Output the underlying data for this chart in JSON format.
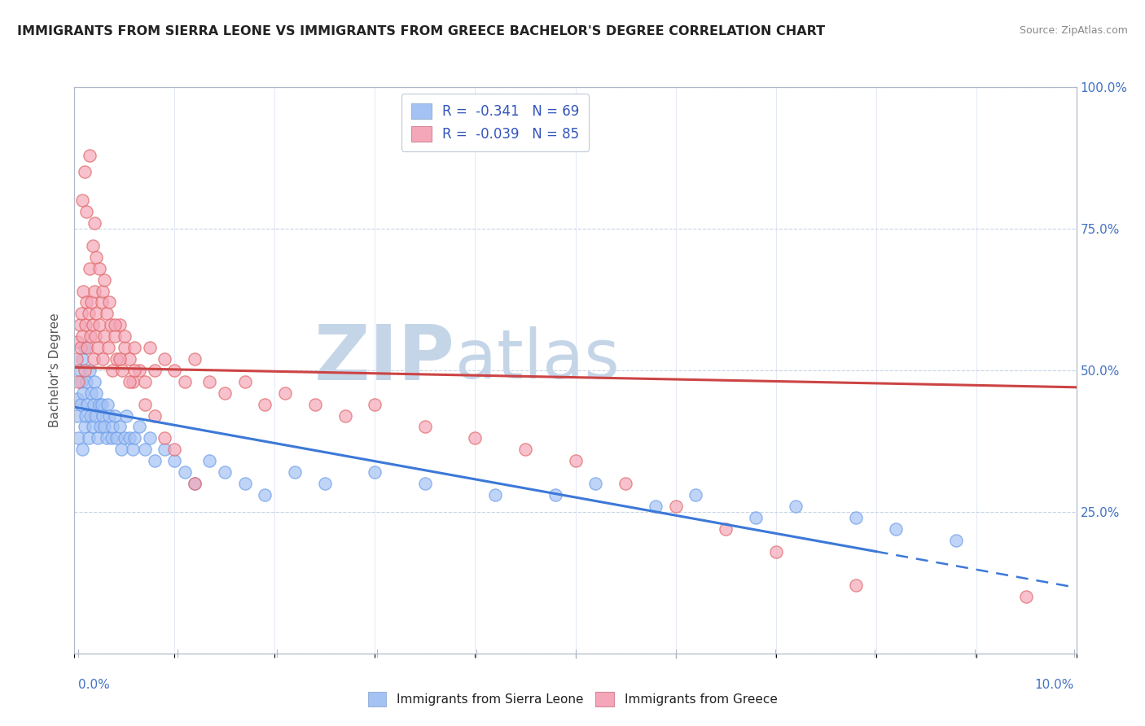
{
  "title": "IMMIGRANTS FROM SIERRA LEONE VS IMMIGRANTS FROM GREECE BACHELOR'S DEGREE CORRELATION CHART",
  "source": "Source: ZipAtlas.com",
  "ylabel": "Bachelor's Degree",
  "x_min": 0.0,
  "x_max": 10.0,
  "y_min": 0.0,
  "y_max": 100.0,
  "blue_color": "#a4c2f4",
  "pink_color": "#f4a7b9",
  "blue_edge": "#6d9eeb",
  "pink_edge": "#e06666",
  "trend_blue": "#3c78d8",
  "trend_pink": "#cc4444",
  "watermark_zip": "ZIP",
  "watermark_atlas": "atlas",
  "watermark_color_zip": "#c8d8ee",
  "watermark_color_atlas": "#c8d8ee",
  "legend1_label": "R =  -0.341   N = 69",
  "legend2_label": "R =  -0.039   N = 85",
  "sl_x": [
    0.02,
    0.03,
    0.04,
    0.05,
    0.06,
    0.07,
    0.08,
    0.08,
    0.09,
    0.1,
    0.1,
    0.11,
    0.12,
    0.13,
    0.14,
    0.15,
    0.16,
    0.17,
    0.18,
    0.19,
    0.2,
    0.21,
    0.22,
    0.23,
    0.25,
    0.26,
    0.27,
    0.28,
    0.3,
    0.32,
    0.33,
    0.35,
    0.37,
    0.38,
    0.4,
    0.42,
    0.45,
    0.47,
    0.5,
    0.52,
    0.55,
    0.58,
    0.6,
    0.65,
    0.7,
    0.75,
    0.8,
    0.9,
    1.0,
    1.1,
    1.2,
    1.35,
    1.5,
    1.7,
    1.9,
    2.2,
    2.5,
    3.0,
    3.5,
    4.2,
    4.8,
    5.2,
    5.8,
    6.2,
    6.8,
    7.2,
    7.8,
    8.2,
    8.8
  ],
  "sl_y": [
    42,
    45,
    38,
    50,
    44,
    48,
    52,
    36,
    46,
    40,
    54,
    42,
    48,
    44,
    38,
    50,
    42,
    46,
    40,
    44,
    48,
    42,
    46,
    38,
    44,
    40,
    44,
    42,
    40,
    38,
    44,
    42,
    38,
    40,
    42,
    38,
    40,
    36,
    38,
    42,
    38,
    36,
    38,
    40,
    36,
    38,
    34,
    36,
    34,
    32,
    30,
    34,
    32,
    30,
    28,
    32,
    30,
    32,
    30,
    28,
    28,
    30,
    26,
    28,
    24,
    26,
    24,
    22,
    20
  ],
  "gr_x": [
    0.02,
    0.03,
    0.04,
    0.05,
    0.06,
    0.07,
    0.08,
    0.09,
    0.1,
    0.11,
    0.12,
    0.13,
    0.14,
    0.15,
    0.16,
    0.17,
    0.18,
    0.19,
    0.2,
    0.21,
    0.22,
    0.23,
    0.25,
    0.27,
    0.28,
    0.3,
    0.32,
    0.34,
    0.36,
    0.38,
    0.4,
    0.42,
    0.45,
    0.48,
    0.5,
    0.55,
    0.58,
    0.6,
    0.65,
    0.7,
    0.75,
    0.8,
    0.9,
    1.0,
    1.1,
    1.2,
    1.35,
    1.5,
    1.7,
    1.9,
    2.1,
    2.4,
    2.7,
    3.0,
    3.5,
    4.0,
    4.5,
    5.0,
    5.5,
    6.0,
    6.5,
    7.0,
    7.8,
    0.08,
    0.1,
    0.12,
    0.15,
    0.18,
    0.2,
    0.22,
    0.25,
    0.28,
    0.3,
    0.35,
    0.4,
    0.45,
    0.5,
    0.55,
    0.6,
    0.7,
    0.8,
    0.9,
    1.0,
    1.2,
    9.5
  ],
  "gr_y": [
    52,
    55,
    48,
    58,
    54,
    60,
    56,
    64,
    50,
    58,
    62,
    54,
    60,
    68,
    56,
    62,
    58,
    52,
    64,
    56,
    60,
    54,
    58,
    62,
    52,
    56,
    60,
    54,
    58,
    50,
    56,
    52,
    58,
    50,
    54,
    52,
    48,
    54,
    50,
    48,
    54,
    50,
    52,
    50,
    48,
    52,
    48,
    46,
    48,
    44,
    46,
    44,
    42,
    44,
    40,
    38,
    36,
    34,
    30,
    26,
    22,
    18,
    12,
    80,
    85,
    78,
    88,
    72,
    76,
    70,
    68,
    64,
    66,
    62,
    58,
    52,
    56,
    48,
    50,
    44,
    42,
    38,
    36,
    30,
    10
  ],
  "sl_trend_x0": 0.0,
  "sl_trend_y0": 43.5,
  "sl_trend_x1": 8.0,
  "sl_trend_y1": 18.0,
  "sl_dash_x0": 8.0,
  "sl_dash_x1": 10.0,
  "gr_trend_x0": 0.0,
  "gr_trend_y0": 50.5,
  "gr_trend_x1": 10.0,
  "gr_trend_y1": 47.0
}
